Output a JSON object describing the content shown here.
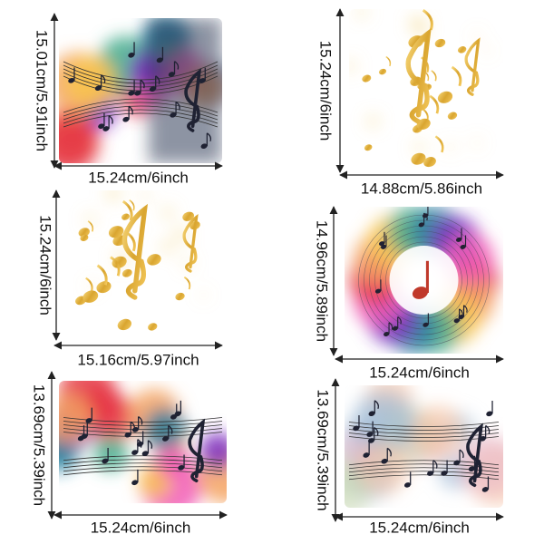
{
  "panels": [
    {
      "width": "15.24cm/6inch",
      "height": "15.01cm/5.91inch"
    },
    {
      "width": "14.88cm/5.86inch",
      "height": "15.24cm/6inch"
    },
    {
      "width": "15.16cm/5.97inch",
      "height": "15.24cm/6inch"
    },
    {
      "width": "15.24cm/6inch",
      "height": "14.96cm/5.89inch"
    },
    {
      "width": "15.24cm/6inch",
      "height": "13.69cm/5.39inch"
    },
    {
      "width": "15.24cm/6inch",
      "height": "13.69cm/5.39inch"
    }
  ]
}
